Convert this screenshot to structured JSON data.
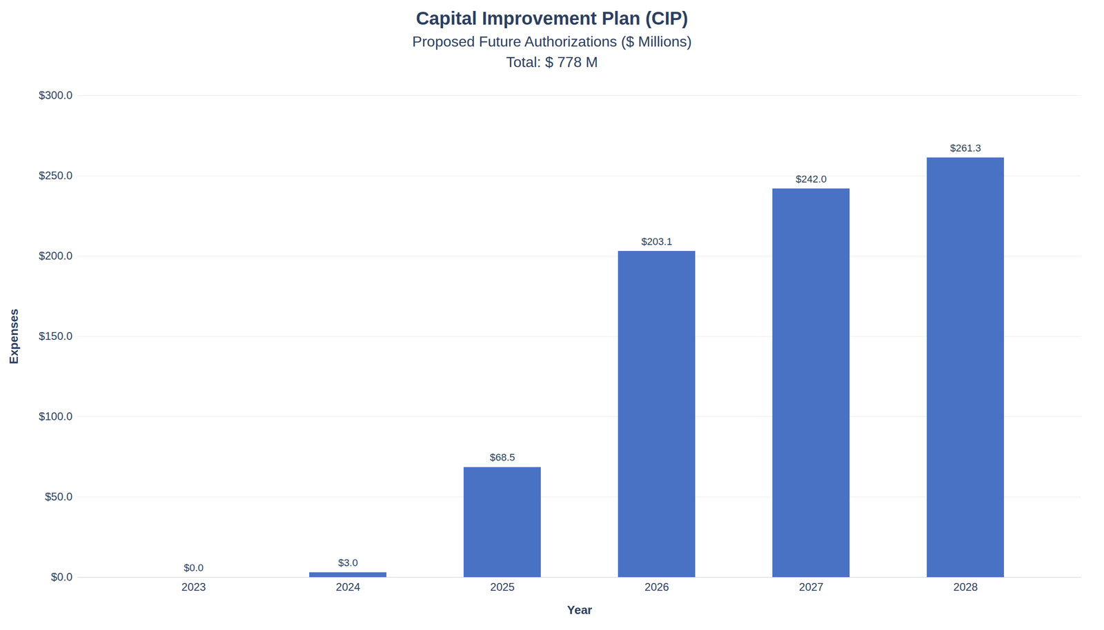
{
  "chart_data": {
    "type": "bar",
    "title": "Capital Improvement Plan (CIP)",
    "subtitle": "Proposed Future Authorizations ($ Millions)",
    "annotations": [
      "Total: $ 778 M"
    ],
    "categories": [
      "2023",
      "2024",
      "2025",
      "2026",
      "2027",
      "2028"
    ],
    "values": [
      0.0,
      3.0,
      68.5,
      203.1,
      242.0,
      261.3
    ],
    "value_labels": [
      "$0.0",
      "$3.0",
      "$68.5",
      "$203.1",
      "$242.0",
      "$261.3"
    ],
    "data_labels": true,
    "color": "#4a72c4",
    "xlabel": "Year",
    "ylabel": "Expenses",
    "ylim": [
      0,
      300
    ],
    "yticks": [
      {
        "value": 0,
        "label": "$0.0"
      },
      {
        "value": 50,
        "label": "$50.0"
      },
      {
        "value": 100,
        "label": "$100.0"
      },
      {
        "value": 150,
        "label": "$150.0"
      },
      {
        "value": 200,
        "label": "$200.0"
      },
      {
        "value": 250,
        "label": "$250.0"
      },
      {
        "value": 300,
        "label": "$300.0"
      }
    ],
    "grid": true
  }
}
